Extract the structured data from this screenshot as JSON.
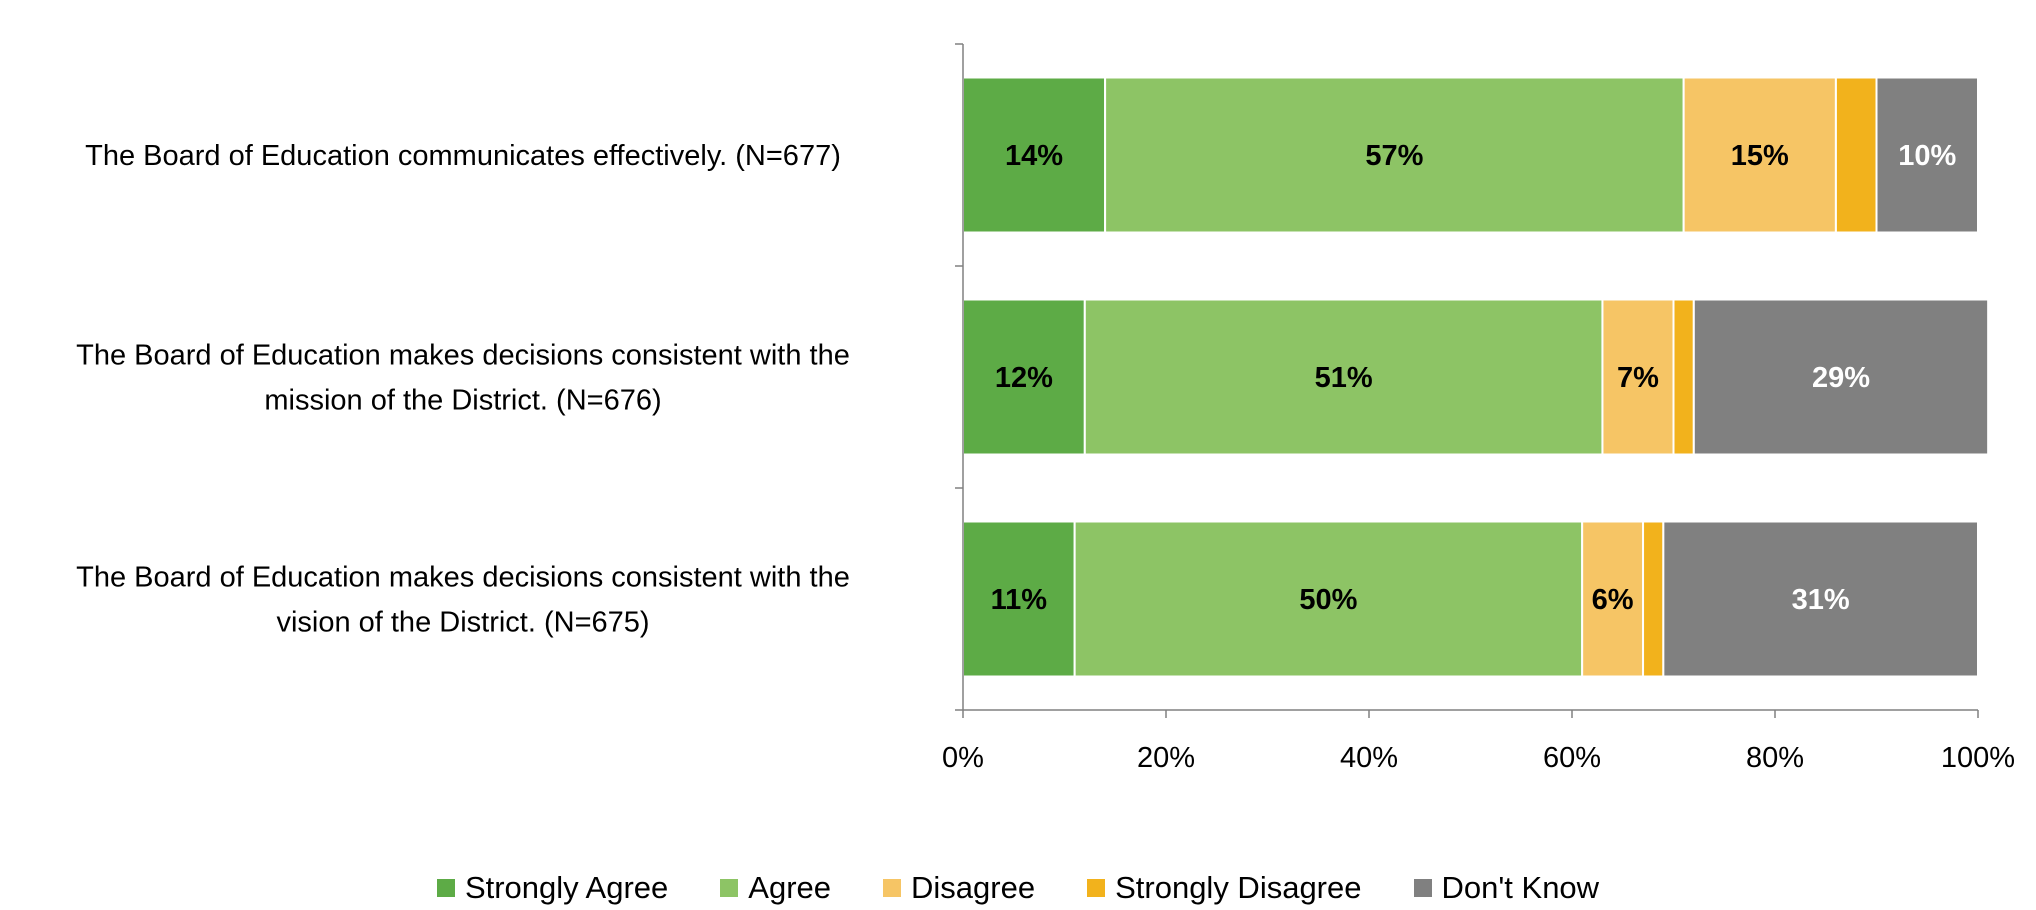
{
  "chart_data": {
    "type": "bar",
    "orientation": "horizontal-stacked-100",
    "categories": [
      [
        "The Board of Education communicates effectively. (N=677)"
      ],
      [
        "The Board of Education makes decisions consistent with the",
        "mission of the District. (N=676)"
      ],
      [
        "The Board of Education makes decisions consistent with the",
        "vision of the District. (N=675)"
      ]
    ],
    "series": [
      {
        "name": "Strongly Agree",
        "color": "#5DAB46",
        "values": [
          14,
          12,
          11
        ],
        "labels": [
          "14%",
          "12%",
          "11%"
        ],
        "label_color": "#000000"
      },
      {
        "name": "Agree",
        "color": "#8DC465",
        "values": [
          57,
          51,
          50
        ],
        "labels": [
          "57%",
          "51%",
          "50%"
        ],
        "label_color": "#000000"
      },
      {
        "name": "Disagree",
        "color": "#F6C565",
        "values": [
          15,
          7,
          6
        ],
        "labels": [
          "15%",
          "7%",
          "6%"
        ],
        "label_color": "#000000"
      },
      {
        "name": "Strongly Disagree",
        "color": "#F2B21C",
        "values": [
          4,
          2,
          2
        ],
        "labels": [
          "",
          "",
          ""
        ],
        "label_color": "#000000"
      },
      {
        "name": "Don't Know",
        "color": "#808080",
        "values": [
          10,
          29,
          31
        ],
        "labels": [
          "10%",
          "29%",
          "31%"
        ],
        "label_color": "#FFFFFF"
      }
    ],
    "x_ticks": [
      "0%",
      "20%",
      "40%",
      "60%",
      "80%",
      "100%"
    ],
    "xlim": [
      0,
      100
    ],
    "legend_position": "bottom",
    "grid": false
  }
}
